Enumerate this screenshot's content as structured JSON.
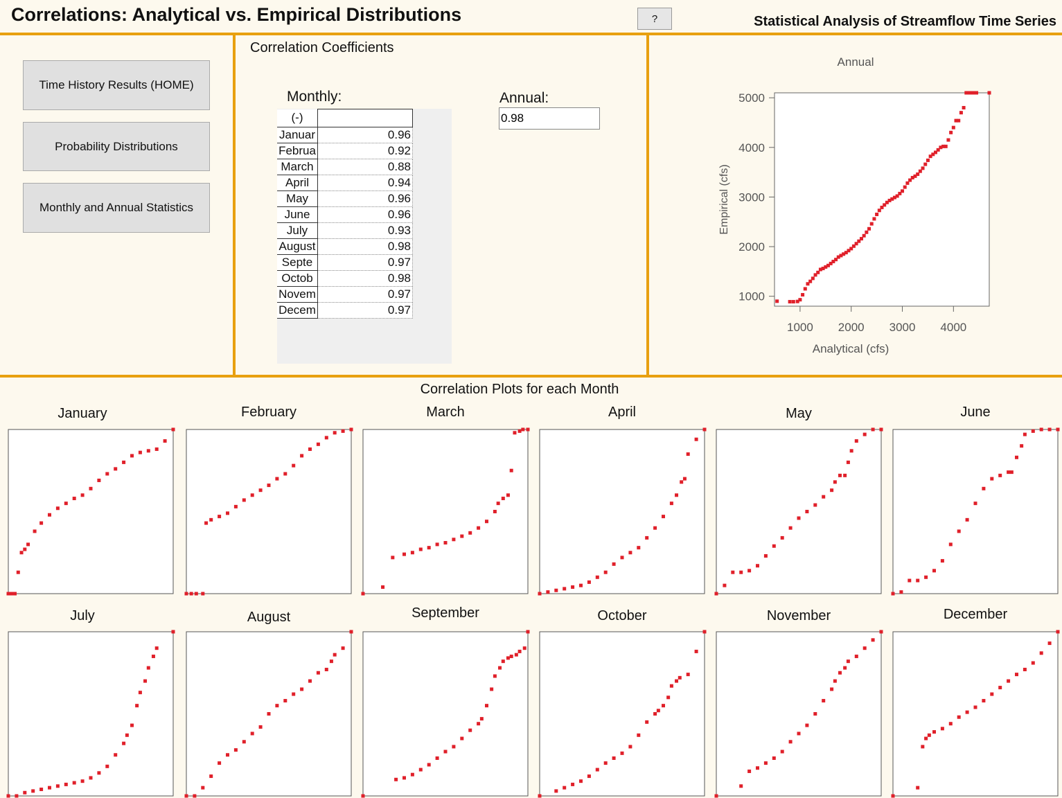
{
  "header": {
    "title": "Correlations: Analytical vs. Empirical Distributions",
    "help_label": "?",
    "subtitle": "Statistical Analysis of Streamflow Time Series"
  },
  "nav": {
    "home_label": "Time History Results (HOME)",
    "prob_label": "Probability Distributions",
    "stats_label": "Monthly and Annual Statistics"
  },
  "coefficients": {
    "section_title": "Correlation Coefficients",
    "monthly_label": "Monthly:",
    "annual_label": "Annual:",
    "annual_value": "0.98",
    "units_header": "(-)",
    "rows": [
      {
        "month": "Januar",
        "value": "0.96"
      },
      {
        "month": "Februa",
        "value": "0.92"
      },
      {
        "month": "March",
        "value": "0.88"
      },
      {
        "month": "April",
        "value": "0.94"
      },
      {
        "month": "May",
        "value": "0.96"
      },
      {
        "month": "June",
        "value": "0.96"
      },
      {
        "month": "July",
        "value": "0.93"
      },
      {
        "month": "August",
        "value": "0.98"
      },
      {
        "month": "Septe",
        "value": "0.97"
      },
      {
        "month": "Octob",
        "value": "0.98"
      },
      {
        "month": "Novem",
        "value": "0.97"
      },
      {
        "month": "Decem",
        "value": "0.97"
      }
    ]
  },
  "bottom": {
    "section_title": "Correlation Plots for each Month",
    "month_titles": [
      "January",
      "February",
      "March",
      "April",
      "May",
      "June",
      "July",
      "August",
      "September",
      "October",
      "November",
      "December"
    ]
  },
  "colors": {
    "accent": "#e8a010",
    "marker": "#e0202a"
  },
  "chart_data": [
    {
      "type": "scatter",
      "title": "Annual",
      "xlabel": "Analytical (cfs)",
      "ylabel": "Empirical (cfs)",
      "xlim": [
        500,
        4700
      ],
      "ylim": [
        800,
        5100
      ],
      "xticks": [
        "1000",
        "2000",
        "3000",
        "4000"
      ],
      "yticks": [
        "1000",
        "2000",
        "3000",
        "4000",
        "5000"
      ],
      "x": [
        550,
        800,
        870,
        950,
        1000,
        1050,
        1100,
        1150,
        1200,
        1250,
        1300,
        1350,
        1400,
        1450,
        1500,
        1550,
        1600,
        1650,
        1700,
        1750,
        1800,
        1850,
        1900,
        1950,
        2000,
        2050,
        2100,
        2150,
        2200,
        2250,
        2300,
        2350,
        2400,
        2450,
        2500,
        2550,
        2600,
        2650,
        2700,
        2750,
        2800,
        2850,
        2900,
        2950,
        3000,
        3050,
        3100,
        3150,
        3200,
        3250,
        3300,
        3350,
        3400,
        3450,
        3500,
        3550,
        3600,
        3650,
        3700,
        3750,
        3800,
        3850,
        3900,
        3950,
        4000,
        4050,
        4100,
        4150,
        4200,
        4250,
        4300,
        4350,
        4400,
        4450,
        4700
      ],
      "y": [
        900,
        890,
        890,
        895,
        930,
        1030,
        1150,
        1250,
        1300,
        1360,
        1430,
        1480,
        1540,
        1560,
        1590,
        1620,
        1660,
        1700,
        1740,
        1790,
        1820,
        1850,
        1880,
        1920,
        1960,
        2010,
        2060,
        2110,
        2160,
        2220,
        2290,
        2360,
        2460,
        2560,
        2650,
        2730,
        2790,
        2840,
        2890,
        2930,
        2960,
        2990,
        3020,
        3070,
        3120,
        3200,
        3280,
        3340,
        3390,
        3420,
        3460,
        3520,
        3580,
        3660,
        3740,
        3820,
        3860,
        3900,
        3950,
        4000,
        4020,
        4020,
        4150,
        4300,
        4400,
        4540,
        4540,
        4700,
        4800,
        5100,
        5100,
        5100,
        5100,
        5100,
        5100
      ]
    },
    {
      "type": "scatter",
      "title": "January",
      "x": [
        0,
        0.02,
        0.04,
        0.06,
        0.08,
        0.1,
        0.12,
        0.16,
        0.2,
        0.25,
        0.3,
        0.35,
        0.4,
        0.45,
        0.5,
        0.55,
        0.6,
        0.65,
        0.7,
        0.75,
        0.8,
        0.85,
        0.9,
        0.95,
        1
      ],
      "y": [
        0,
        0,
        0,
        0.13,
        0.25,
        0.27,
        0.3,
        0.38,
        0.43,
        0.48,
        0.52,
        0.55,
        0.58,
        0.6,
        0.64,
        0.69,
        0.73,
        0.76,
        0.8,
        0.84,
        0.86,
        0.87,
        0.88,
        0.93,
        1
      ]
    },
    {
      "type": "scatter",
      "title": "February",
      "x": [
        0,
        0.03,
        0.06,
        0.1,
        0.12,
        0.15,
        0.2,
        0.25,
        0.3,
        0.35,
        0.4,
        0.45,
        0.5,
        0.55,
        0.6,
        0.65,
        0.7,
        0.75,
        0.8,
        0.85,
        0.9,
        0.95,
        1
      ],
      "y": [
        0,
        0,
        0,
        0,
        0.43,
        0.45,
        0.47,
        0.49,
        0.53,
        0.57,
        0.6,
        0.63,
        0.66,
        0.7,
        0.73,
        0.78,
        0.84,
        0.88,
        0.91,
        0.95,
        0.98,
        0.99,
        1
      ]
    },
    {
      "type": "scatter",
      "title": "March",
      "x": [
        0,
        0.12,
        0.18,
        0.25,
        0.3,
        0.35,
        0.4,
        0.45,
        0.5,
        0.55,
        0.6,
        0.65,
        0.7,
        0.75,
        0.8,
        0.82,
        0.85,
        0.88,
        0.9,
        0.92,
        0.95,
        0.97,
        1
      ],
      "y": [
        0,
        0.04,
        0.22,
        0.24,
        0.25,
        0.27,
        0.28,
        0.3,
        0.31,
        0.33,
        0.35,
        0.37,
        0.4,
        0.44,
        0.5,
        0.55,
        0.58,
        0.6,
        0.75,
        0.98,
        0.99,
        1,
        1
      ]
    },
    {
      "type": "scatter",
      "title": "April",
      "x": [
        0,
        0.05,
        0.1,
        0.15,
        0.2,
        0.25,
        0.3,
        0.35,
        0.4,
        0.45,
        0.5,
        0.55,
        0.6,
        0.65,
        0.7,
        0.75,
        0.8,
        0.83,
        0.86,
        0.88,
        0.9,
        0.95,
        1
      ],
      "y": [
        0,
        0.01,
        0.02,
        0.03,
        0.04,
        0.05,
        0.07,
        0.1,
        0.13,
        0.18,
        0.22,
        0.25,
        0.28,
        0.34,
        0.4,
        0.47,
        0.55,
        0.6,
        0.68,
        0.7,
        0.85,
        0.94,
        1
      ]
    },
    {
      "type": "scatter",
      "title": "May",
      "x": [
        0,
        0.05,
        0.1,
        0.15,
        0.2,
        0.25,
        0.3,
        0.35,
        0.4,
        0.45,
        0.5,
        0.55,
        0.6,
        0.65,
        0.7,
        0.72,
        0.75,
        0.78,
        0.8,
        0.82,
        0.85,
        0.9,
        0.95,
        1
      ],
      "y": [
        0,
        0.05,
        0.13,
        0.13,
        0.14,
        0.17,
        0.23,
        0.29,
        0.34,
        0.4,
        0.46,
        0.5,
        0.54,
        0.59,
        0.63,
        0.68,
        0.72,
        0.72,
        0.8,
        0.87,
        0.93,
        0.97,
        1,
        1
      ]
    },
    {
      "type": "scatter",
      "title": "June",
      "x": [
        0,
        0.05,
        0.1,
        0.15,
        0.2,
        0.25,
        0.3,
        0.35,
        0.4,
        0.45,
        0.5,
        0.55,
        0.6,
        0.65,
        0.7,
        0.72,
        0.75,
        0.78,
        0.8,
        0.85,
        0.9,
        0.95,
        1
      ],
      "y": [
        0,
        0.01,
        0.08,
        0.08,
        0.1,
        0.14,
        0.2,
        0.3,
        0.38,
        0.45,
        0.55,
        0.64,
        0.7,
        0.72,
        0.74,
        0.74,
        0.83,
        0.9,
        0.97,
        0.99,
        1,
        1,
        1
      ]
    },
    {
      "type": "scatter",
      "title": "July",
      "x": [
        0,
        0.05,
        0.1,
        0.15,
        0.2,
        0.25,
        0.3,
        0.35,
        0.4,
        0.45,
        0.5,
        0.55,
        0.6,
        0.65,
        0.7,
        0.72,
        0.75,
        0.78,
        0.8,
        0.83,
        0.85,
        0.88,
        0.9,
        1
      ],
      "y": [
        0,
        0,
        0.02,
        0.03,
        0.04,
        0.05,
        0.06,
        0.07,
        0.08,
        0.09,
        0.11,
        0.14,
        0.18,
        0.25,
        0.32,
        0.37,
        0.43,
        0.55,
        0.63,
        0.7,
        0.78,
        0.85,
        0.9,
        1
      ]
    },
    {
      "type": "scatter",
      "title": "August",
      "x": [
        0,
        0.05,
        0.1,
        0.15,
        0.2,
        0.25,
        0.3,
        0.35,
        0.4,
        0.45,
        0.5,
        0.55,
        0.6,
        0.65,
        0.7,
        0.75,
        0.8,
        0.85,
        0.88,
        0.9,
        0.95,
        1
      ],
      "y": [
        0,
        0,
        0.05,
        0.12,
        0.2,
        0.25,
        0.28,
        0.33,
        0.38,
        0.42,
        0.5,
        0.55,
        0.58,
        0.62,
        0.65,
        0.7,
        0.75,
        0.77,
        0.82,
        0.86,
        0.9,
        1
      ]
    },
    {
      "type": "scatter",
      "title": "September",
      "x": [
        0,
        0.2,
        0.25,
        0.3,
        0.35,
        0.4,
        0.45,
        0.5,
        0.55,
        0.6,
        0.65,
        0.7,
        0.72,
        0.75,
        0.78,
        0.8,
        0.83,
        0.85,
        0.88,
        0.9,
        0.93,
        0.95,
        0.98,
        1
      ],
      "y": [
        0,
        0.1,
        0.11,
        0.13,
        0.16,
        0.19,
        0.23,
        0.27,
        0.3,
        0.35,
        0.4,
        0.44,
        0.47,
        0.55,
        0.65,
        0.73,
        0.78,
        0.82,
        0.84,
        0.85,
        0.86,
        0.88,
        0.9,
        1
      ]
    },
    {
      "type": "scatter",
      "title": "October",
      "x": [
        0,
        0.1,
        0.15,
        0.2,
        0.25,
        0.3,
        0.35,
        0.4,
        0.45,
        0.5,
        0.55,
        0.6,
        0.65,
        0.7,
        0.72,
        0.75,
        0.78,
        0.8,
        0.83,
        0.85,
        0.9,
        0.95,
        1
      ],
      "y": [
        0,
        0.03,
        0.05,
        0.07,
        0.09,
        0.12,
        0.16,
        0.2,
        0.23,
        0.26,
        0.3,
        0.37,
        0.45,
        0.5,
        0.52,
        0.55,
        0.6,
        0.67,
        0.7,
        0.72,
        0.74,
        0.88,
        1
      ]
    },
    {
      "type": "scatter",
      "title": "November",
      "x": [
        0,
        0.15,
        0.2,
        0.25,
        0.3,
        0.35,
        0.4,
        0.45,
        0.5,
        0.55,
        0.6,
        0.65,
        0.7,
        0.72,
        0.75,
        0.78,
        0.8,
        0.85,
        0.9,
        0.95,
        1
      ],
      "y": [
        0,
        0.06,
        0.15,
        0.17,
        0.2,
        0.23,
        0.27,
        0.33,
        0.38,
        0.43,
        0.5,
        0.58,
        0.65,
        0.7,
        0.75,
        0.78,
        0.82,
        0.85,
        0.9,
        0.95,
        1
      ]
    },
    {
      "type": "scatter",
      "title": "December",
      "x": [
        0,
        0.15,
        0.18,
        0.2,
        0.22,
        0.25,
        0.3,
        0.35,
        0.4,
        0.45,
        0.5,
        0.55,
        0.6,
        0.65,
        0.7,
        0.75,
        0.8,
        0.85,
        0.9,
        0.95,
        1
      ],
      "y": [
        0,
        0.05,
        0.3,
        0.35,
        0.37,
        0.39,
        0.41,
        0.44,
        0.48,
        0.51,
        0.54,
        0.58,
        0.62,
        0.66,
        0.7,
        0.74,
        0.77,
        0.81,
        0.87,
        0.93,
        1
      ]
    }
  ]
}
